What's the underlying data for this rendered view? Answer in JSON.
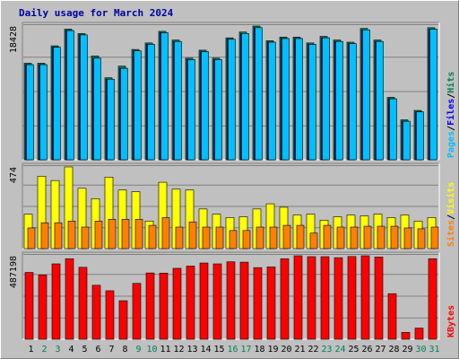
{
  "title": "Daily usage for March 2024",
  "colors": {
    "hits": "#00805c",
    "files": "#0000ff",
    "pages": "#00c0ff",
    "visits": "#ffff00",
    "sites": "#ff8000",
    "kbytes": "#ff0000",
    "weekend_day": "#00805c",
    "weekday": "#000000"
  },
  "chart_data": [
    {
      "type": "bar",
      "name_key": "top",
      "ytick_label": "18428",
      "ymax": 18428,
      "axis_labels": [
        {
          "text": "Pages",
          "color": "#00c0ff"
        },
        {
          "text": "/",
          "color": "#000000"
        },
        {
          "text": "Files",
          "color": "#0000ff"
        },
        {
          "text": "/",
          "color": "#000000"
        },
        {
          "text": "Hits",
          "color": "#00805c"
        }
      ],
      "categories": [
        "1",
        "2",
        "3",
        "4",
        "5",
        "6",
        "7",
        "8",
        "9",
        "10",
        "11",
        "12",
        "13",
        "14",
        "15",
        "16",
        "17",
        "18",
        "19",
        "20",
        "21",
        "22",
        "23",
        "24",
        "25",
        "26",
        "27",
        "28",
        "29",
        "30",
        "31"
      ],
      "series": [
        {
          "key": "hits",
          "values": [
            13300,
            13300,
            15700,
            18000,
            17400,
            14300,
            11300,
            12900,
            15200,
            16100,
            17700,
            16500,
            14000,
            15100,
            14000,
            16800,
            17600,
            18428,
            16400,
            16900,
            16900,
            16100,
            17000,
            16500,
            16200,
            18100,
            16500,
            8600,
            5500,
            6800,
            18200
          ]
        },
        {
          "key": "files",
          "values": [
            13100,
            13100,
            15500,
            17800,
            17200,
            14000,
            11100,
            12600,
            15000,
            15900,
            17500,
            16300,
            13800,
            14900,
            13800,
            16600,
            17400,
            18200,
            16200,
            16700,
            16700,
            15900,
            16800,
            16300,
            16000,
            17900,
            16300,
            8400,
            5300,
            6600,
            18000
          ]
        },
        {
          "key": "pages",
          "values": [
            13100,
            13100,
            15500,
            17800,
            17200,
            14000,
            11100,
            12600,
            15000,
            15900,
            17500,
            16300,
            13800,
            14900,
            13800,
            16600,
            17400,
            18200,
            16200,
            16700,
            16700,
            15900,
            16800,
            16300,
            16000,
            17900,
            16300,
            8400,
            5300,
            6600,
            18000
          ]
        }
      ]
    },
    {
      "type": "bar",
      "name_key": "middle",
      "ytick_label": "474",
      "ymax": 474,
      "axis_labels": [
        {
          "text": "Sites",
          "color": "#ff8000"
        },
        {
          "text": "/",
          "color": "#000000"
        },
        {
          "text": "Visits",
          "color": "#ffff00"
        }
      ],
      "categories": [
        "1",
        "2",
        "3",
        "4",
        "5",
        "6",
        "7",
        "8",
        "9",
        "10",
        "11",
        "12",
        "13",
        "14",
        "15",
        "16",
        "17",
        "18",
        "19",
        "20",
        "21",
        "22",
        "23",
        "24",
        "25",
        "26",
        "27",
        "28",
        "29",
        "30",
        "31"
      ],
      "series": [
        {
          "key": "visits",
          "values": [
            200,
            420,
            395,
            474,
            350,
            290,
            415,
            340,
            330,
            160,
            385,
            345,
            340,
            230,
            200,
            180,
            185,
            230,
            260,
            240,
            195,
            200,
            165,
            185,
            195,
            190,
            200,
            180,
            195,
            160,
            180
          ]
        },
        {
          "key": "sites",
          "values": [
            120,
            150,
            150,
            160,
            125,
            160,
            170,
            170,
            170,
            135,
            180,
            125,
            155,
            125,
            125,
            105,
            105,
            125,
            125,
            135,
            135,
            90,
            135,
            125,
            125,
            130,
            130,
            130,
            120,
            115,
            125
          ]
        }
      ]
    },
    {
      "type": "bar",
      "name_key": "bottom",
      "ytick_label": "487198",
      "ymax": 487198,
      "axis_labels": [
        {
          "text": "KBytes",
          "color": "#ff0000"
        }
      ],
      "categories": [
        "1",
        "2",
        "3",
        "4",
        "5",
        "6",
        "7",
        "8",
        "9",
        "10",
        "11",
        "12",
        "13",
        "14",
        "15",
        "16",
        "17",
        "18",
        "19",
        "20",
        "21",
        "22",
        "23",
        "24",
        "25",
        "26",
        "27",
        "28",
        "29",
        "30",
        "31"
      ],
      "series": [
        {
          "key": "kbytes",
          "values": [
            390000,
            375000,
            440000,
            470000,
            420000,
            315000,
            283000,
            225000,
            326000,
            387000,
            386000,
            414000,
            427000,
            445000,
            440000,
            452000,
            450000,
            418000,
            422000,
            470000,
            487198,
            482000,
            482000,
            476000,
            483000,
            487198,
            480000,
            266000,
            40000,
            65000,
            470000
          ]
        }
      ]
    }
  ],
  "x_labels": [
    "1",
    "2",
    "3",
    "4",
    "5",
    "6",
    "7",
    "8",
    "9",
    "10",
    "11",
    "12",
    "13",
    "14",
    "15",
    "16",
    "17",
    "18",
    "19",
    "20",
    "21",
    "22",
    "23",
    "24",
    "25",
    "26",
    "27",
    "28",
    "29",
    "30",
    "31"
  ],
  "weekend_days": [
    "2",
    "3",
    "9",
    "10",
    "16",
    "17",
    "23",
    "24",
    "30",
    "31"
  ]
}
